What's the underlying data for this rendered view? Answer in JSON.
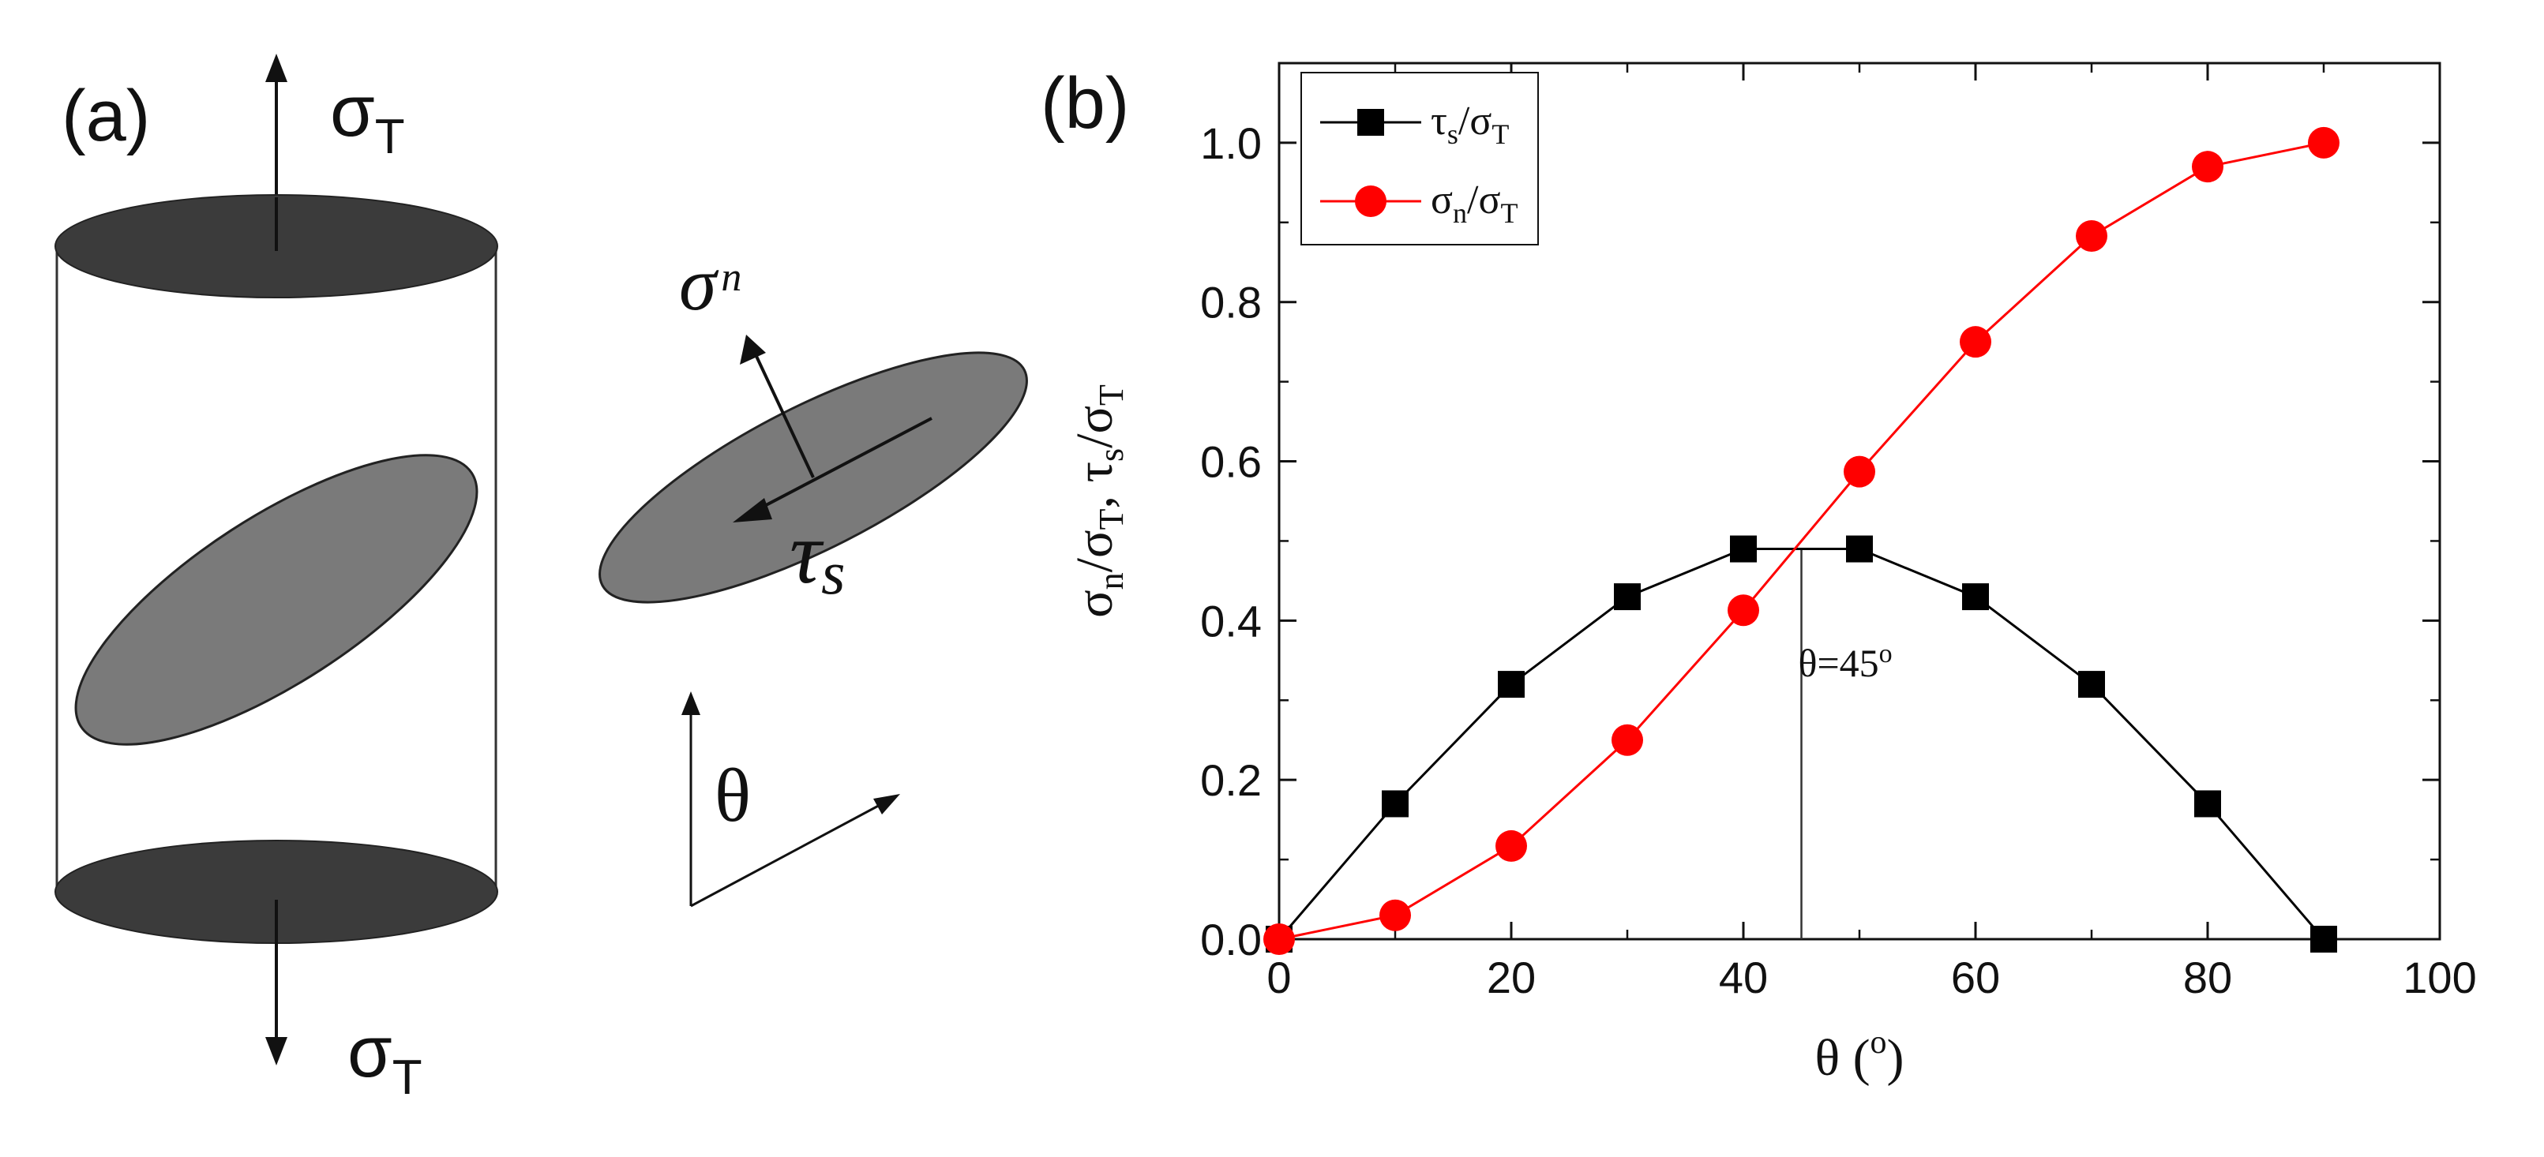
{
  "panel_a": {
    "label": "(a)",
    "tension_top": {
      "symbol": "σ",
      "sub": "T"
    },
    "tension_bottom": {
      "symbol": "σ",
      "sub": "T"
    },
    "normal_stress": {
      "symbol": "σ",
      "sub": "n"
    },
    "shear_stress": {
      "symbol": "τ",
      "sub": "s"
    },
    "angle_symbol": "θ"
  },
  "panel_b": {
    "label": "(b)",
    "ylabel_text": "σn/σT, τs/σT",
    "xlabel_text": "θ (o)",
    "xlabel": {
      "main": "θ (",
      "sup": "o",
      "end": ")"
    },
    "annotation": {
      "text": "θ=45",
      "sup": "o",
      "x": 45
    },
    "colors": {
      "shear": "#000000",
      "normal": "#ff0000"
    },
    "legend": [
      {
        "text": "τs/σT",
        "symbol": "τ",
        "sub": "s",
        "slash": "/",
        "symbol2": "σ",
        "sub2": "T"
      },
      {
        "text": "σn/σT",
        "symbol": "σ",
        "sub": "n",
        "slash": "/",
        "symbol2": "σ",
        "sub2": "T"
      }
    ]
  },
  "chart_data": {
    "type": "line",
    "title": "",
    "xlabel": "θ (o)",
    "ylabel": "σn/σT, τs/σT",
    "xlim": [
      0,
      100
    ],
    "ylim": [
      0,
      1.1
    ],
    "x": [
      0,
      10,
      20,
      30,
      40,
      50,
      60,
      70,
      80,
      90
    ],
    "xticks": [
      0,
      20,
      40,
      60,
      80,
      100
    ],
    "xtick_labels": [
      "0",
      "20",
      "40",
      "60",
      "80",
      "100"
    ],
    "yticks": [
      0,
      0.2,
      0.4,
      0.6,
      0.8,
      1.0
    ],
    "ytick_labels": [
      "0.0",
      "0.2",
      "0.4",
      "0.6",
      "0.8",
      "1.0"
    ],
    "legend_position": "top-left",
    "grid": false,
    "series": [
      {
        "name": "τs/σT",
        "marker": "square",
        "color": "#000000",
        "values": [
          0.0,
          0.17,
          0.32,
          0.43,
          0.49,
          0.49,
          0.43,
          0.32,
          0.17,
          0.0
        ]
      },
      {
        "name": "σn/σT",
        "marker": "circle",
        "color": "#ff0000",
        "values": [
          0.0,
          0.03,
          0.117,
          0.25,
          0.413,
          0.587,
          0.75,
          0.883,
          0.97,
          1.0
        ]
      }
    ]
  }
}
